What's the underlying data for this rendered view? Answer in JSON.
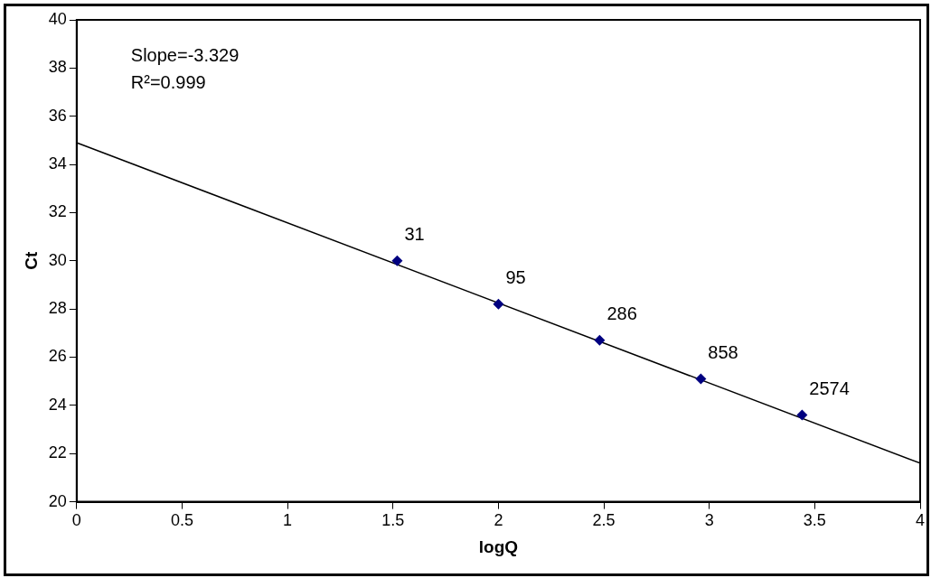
{
  "chart_data": {
    "type": "scatter",
    "xlabel": "logQ",
    "ylabel": "Ct",
    "xlim": [
      0,
      4
    ],
    "xticks": [
      0,
      0.5,
      1,
      1.5,
      2,
      2.5,
      3,
      3.5,
      4
    ],
    "ylim": [
      20,
      40
    ],
    "yticks": [
      20,
      22,
      24,
      26,
      28,
      30,
      32,
      34,
      36,
      38,
      40
    ],
    "grid": false,
    "legend": false,
    "marker": "diamond",
    "annotations": [
      "Slope=-3.329",
      "R²=0.999",
      {
        "text": "31",
        "x": 1.52,
        "y": 30.0
      },
      {
        "text": "95",
        "x": 2.0,
        "y": 28.2
      },
      {
        "text": "286",
        "x": 2.48,
        "y": 26.7
      },
      {
        "text": "858",
        "x": 2.96,
        "y": 25.1
      },
      {
        "text": "2574",
        "x": 3.44,
        "y": 23.6
      }
    ],
    "series": [
      {
        "type": "scatter",
        "color": "#000080",
        "x": [
          1.52,
          2.0,
          2.48,
          2.96,
          3.44
        ],
        "values": [
          30.0,
          28.2,
          26.7,
          25.1,
          23.6
        ]
      },
      {
        "type": "line",
        "color": "#000000",
        "x": [
          0,
          4
        ],
        "values": [
          34.9,
          21.6
        ],
        "marker": "none",
        "line_style": "solid"
      }
    ]
  }
}
